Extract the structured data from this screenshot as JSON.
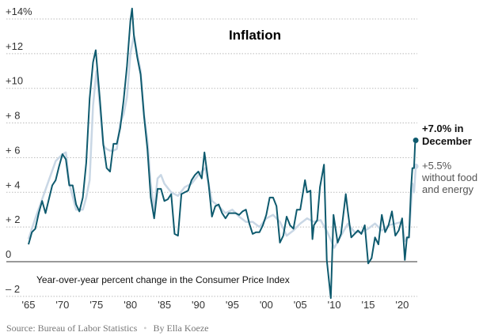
{
  "chart_data": {
    "type": "line",
    "title": "Inflation",
    "note": "Year-over-year percent change in the Consumer Price Index",
    "ylim": [
      -2,
      14
    ],
    "xlim": [
      1965,
      2022
    ],
    "grid": true,
    "y_ticks": [
      {
        "value": 14,
        "label": "+14%"
      },
      {
        "value": 12,
        "label": "+12"
      },
      {
        "value": 10,
        "label": "+10"
      },
      {
        "value": 8,
        "label": "+ 8"
      },
      {
        "value": 6,
        "label": "+ 6"
      },
      {
        "value": 4,
        "label": "+ 4"
      },
      {
        "value": 2,
        "label": "+ 2"
      },
      {
        "value": 0,
        "label": "0"
      },
      {
        "value": -2,
        "label": "– 2"
      }
    ],
    "x_ticks": [
      {
        "value": 1965,
        "label": "'65"
      },
      {
        "value": 1970,
        "label": "'70"
      },
      {
        "value": 1975,
        "label": "'75"
      },
      {
        "value": 1980,
        "label": "'80"
      },
      {
        "value": 1985,
        "label": "'85"
      },
      {
        "value": 1990,
        "label": "'90"
      },
      {
        "value": 1995,
        "label": "'95"
      },
      {
        "value": 2000,
        "label": "'00"
      },
      {
        "value": 2005,
        "label": "'05"
      },
      {
        "value": 2010,
        "label": "'10"
      },
      {
        "value": 2015,
        "label": "'15"
      },
      {
        "value": 2020,
        "label": "'20"
      }
    ],
    "series": [
      {
        "key": "core",
        "color": "#c9d7e5",
        "x": [
          1965,
          1966,
          1967,
          1968,
          1969,
          1970,
          1970.5,
          1971,
          1972,
          1973,
          1973.5,
          1974,
          1974.5,
          1975,
          1975.5,
          1976,
          1976.5,
          1977,
          1977.5,
          1978,
          1978.5,
          1979,
          1979.5,
          1980,
          1980.5,
          1981,
          1981.5,
          1982,
          1982.5,
          1983,
          1983.5,
          1984,
          1984.5,
          1985,
          1986,
          1987,
          1988,
          1989,
          1990,
          1991,
          1991.5,
          1992,
          1993,
          1994,
          1995,
          1996,
          1997,
          1998,
          1999,
          2000,
          2001,
          2002,
          2003,
          2004,
          2005,
          2006,
          2007,
          2008,
          2009,
          2010,
          2011,
          2012,
          2013,
          2014,
          2015,
          2016,
          2017,
          2018,
          2019,
          2020,
          2020.4,
          2021,
          2021.4,
          2021.5,
          2021.75,
          2022
        ],
        "y": [
          1.3,
          2.5,
          3.6,
          4.7,
          5.8,
          6.2,
          6.3,
          4.5,
          3.0,
          3.0,
          3.7,
          4.7,
          9.0,
          11.0,
          9.0,
          6.7,
          6.5,
          6.4,
          6.4,
          6.5,
          8.0,
          8.5,
          9.5,
          12.0,
          13.0,
          12.0,
          11.0,
          8.5,
          7.0,
          4.5,
          3.0,
          4.8,
          5.0,
          4.5,
          4.0,
          3.8,
          4.3,
          4.5,
          5.0,
          5.4,
          4.5,
          3.5,
          3.2,
          2.8,
          3.0,
          2.6,
          2.3,
          2.3,
          2.0,
          2.5,
          2.7,
          2.3,
          1.5,
          1.8,
          2.2,
          2.5,
          2.3,
          2.4,
          1.7,
          0.8,
          1.5,
          2.2,
          1.7,
          1.7,
          1.9,
          2.2,
          1.8,
          2.1,
          2.2,
          2.3,
          1.2,
          1.4,
          3.8,
          4.5,
          4.0,
          5.5
        ]
      },
      {
        "key": "headline",
        "color": "#0e5a6e",
        "x": [
          1965,
          1965.5,
          1966,
          1966.5,
          1967,
          1967.5,
          1968,
          1968.5,
          1969,
          1969.5,
          1970,
          1970.5,
          1971,
          1971.5,
          1972,
          1972.5,
          1973,
          1973.5,
          1974,
          1974.5,
          1974.9,
          1975.5,
          1976,
          1976.5,
          1977,
          1977.5,
          1978,
          1978.5,
          1979,
          1979.5,
          1980,
          1980.25,
          1980.5,
          1981,
          1981.5,
          1982,
          1982.5,
          1983,
          1983.5,
          1984,
          1984.5,
          1985,
          1985.5,
          1986,
          1986.5,
          1987,
          1987.5,
          1988,
          1988.5,
          1989,
          1989.5,
          1990,
          1990.5,
          1990.9,
          1991.5,
          1992,
          1992.5,
          1993,
          1993.5,
          1994,
          1994.5,
          1995,
          1995.5,
          1996,
          1996.5,
          1997,
          1997.5,
          1998,
          1998.5,
          1999,
          1999.5,
          2000,
          2000.5,
          2001,
          2001.5,
          2002,
          2002.5,
          2003,
          2003.5,
          2004,
          2004.5,
          2005,
          2005.7,
          2006,
          2006.5,
          2006.8,
          2007,
          2007.5,
          2007.9,
          2008.5,
          2008.9,
          2009.5,
          2009.9,
          2010.5,
          2011,
          2011.7,
          2012,
          2012.5,
          2013,
          2013.5,
          2014,
          2014.5,
          2015,
          2015.5,
          2016,
          2016.5,
          2017,
          2017.5,
          2018,
          2018.5,
          2019,
          2019.5,
          2020,
          2020.4,
          2020.7,
          2021,
          2021.3,
          2021.5,
          2021.75,
          2021.9,
          2022
        ],
        "y": [
          1.0,
          1.7,
          1.9,
          2.8,
          3.5,
          2.8,
          3.6,
          4.4,
          4.7,
          5.5,
          6.2,
          5.9,
          4.4,
          4.4,
          3.3,
          2.9,
          3.7,
          5.7,
          9.4,
          11.5,
          12.2,
          9.4,
          6.8,
          5.4,
          5.2,
          6.8,
          6.8,
          7.7,
          9.3,
          11.3,
          13.9,
          14.6,
          13.1,
          11.8,
          10.8,
          8.4,
          6.5,
          3.7,
          2.5,
          4.2,
          4.2,
          3.5,
          3.6,
          3.9,
          1.6,
          1.5,
          3.9,
          4.0,
          4.1,
          4.7,
          5.0,
          5.2,
          4.8,
          6.3,
          4.5,
          2.6,
          3.2,
          3.3,
          2.8,
          2.5,
          2.8,
          2.8,
          2.8,
          2.7,
          2.9,
          3.0,
          2.2,
          1.6,
          1.7,
          1.7,
          2.1,
          2.7,
          3.7,
          3.7,
          3.2,
          1.1,
          1.5,
          2.6,
          2.1,
          1.9,
          3.0,
          3.0,
          4.7,
          4.0,
          4.1,
          1.3,
          2.1,
          2.4,
          4.3,
          5.6,
          0.1,
          -2.1,
          2.7,
          1.1,
          1.6,
          3.9,
          2.9,
          1.4,
          1.6,
          1.8,
          1.6,
          2.1,
          -0.1,
          0.2,
          1.4,
          1.0,
          2.7,
          1.7,
          2.1,
          2.9,
          1.5,
          1.8,
          2.5,
          0.1,
          1.4,
          1.4,
          4.2,
          5.4,
          5.4,
          6.8,
          7.0
        ]
      }
    ],
    "annotations": {
      "headline_line1": "+7.0% in",
      "headline_line2": "December",
      "core_line1": "+5.5%",
      "core_line2": "without food",
      "core_line3": "and energy"
    }
  },
  "source": "Source: Bureau of Labor Statistics",
  "separator": "•",
  "byline": "By Ella Koeze"
}
